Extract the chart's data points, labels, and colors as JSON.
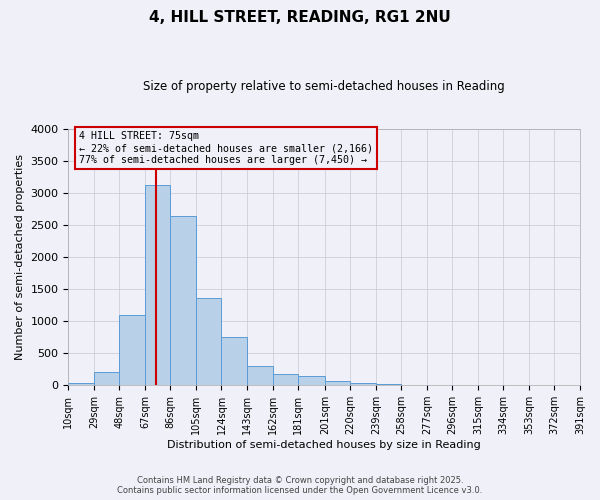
{
  "title": "4, HILL STREET, READING, RG1 2NU",
  "subtitle": "Size of property relative to semi-detached houses in Reading",
  "xlabel": "Distribution of semi-detached houses by size in Reading",
  "ylabel": "Number of semi-detached properties",
  "bin_edges": [
    10,
    29,
    48,
    67,
    86,
    105,
    124,
    143,
    162,
    181,
    201,
    220,
    239,
    258,
    277,
    296,
    315,
    334,
    353,
    372,
    391
  ],
  "bar_heights": [
    30,
    200,
    1090,
    3130,
    2640,
    1360,
    760,
    305,
    175,
    145,
    65,
    40,
    20,
    5,
    0,
    0,
    0,
    0,
    0,
    0
  ],
  "bar_color": "#b8d0e8",
  "bar_edge_color": "#5b9bd5",
  "property_line_x": 75,
  "property_line_color": "#cc0000",
  "annotation_title": "4 HILL STREET: 75sqm",
  "annotation_line1": "← 22% of semi-detached houses are smaller (2,166)",
  "annotation_line2": "77% of semi-detached houses are larger (7,450) →",
  "annotation_box_color": "#cc0000",
  "ylim": [
    0,
    4000
  ],
  "yticks": [
    0,
    500,
    1000,
    1500,
    2000,
    2500,
    3000,
    3500,
    4000
  ],
  "tick_labels": [
    "10sqm",
    "29sqm",
    "48sqm",
    "67sqm",
    "86sqm",
    "105sqm",
    "124sqm",
    "143sqm",
    "162sqm",
    "181sqm",
    "201sqm",
    "220sqm",
    "239sqm",
    "258sqm",
    "277sqm",
    "296sqm",
    "315sqm",
    "334sqm",
    "353sqm",
    "372sqm",
    "391sqm"
  ],
  "footer1": "Contains HM Land Registry data © Crown copyright and database right 2025.",
  "footer2": "Contains public sector information licensed under the Open Government Licence v3.0.",
  "bg_color": "#f0f0f8",
  "grid_color": "#c8c8d8"
}
